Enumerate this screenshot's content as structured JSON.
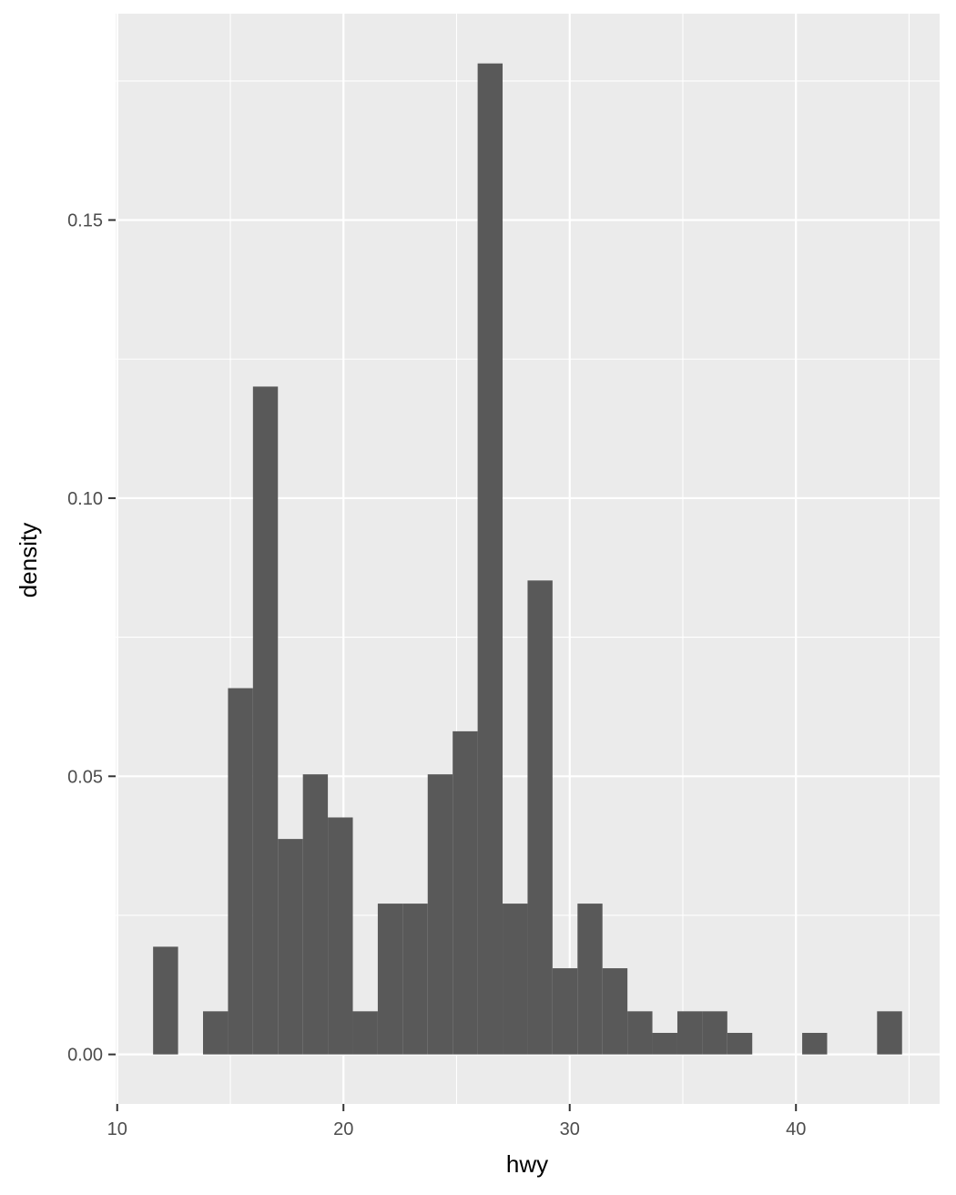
{
  "chart_data": {
    "type": "histogram",
    "x_label": "hwy",
    "y_label": "density",
    "bins": [
      11.586,
      12.69,
      13.793,
      14.897,
      16.0,
      17.103,
      18.207,
      19.31,
      20.414,
      21.517,
      22.621,
      23.724,
      24.828,
      25.931,
      27.034,
      28.138,
      29.241,
      30.345,
      31.448,
      32.552,
      33.655,
      34.759,
      35.862,
      36.966,
      38.069,
      39.172,
      40.276,
      41.379,
      42.483,
      43.586,
      44.69
    ],
    "values": [
      0.01936,
      0,
      0.00775,
      0.06584,
      0.12006,
      0.03873,
      0.05035,
      0.0426,
      0.00775,
      0.02711,
      0.02711,
      0.05035,
      0.05809,
      0.17815,
      0.02711,
      0.0852,
      0.01549,
      0.02711,
      0.01549,
      0.00775,
      0.00387,
      0.00775,
      0.00775,
      0.00387,
      0,
      0,
      0.00387,
      0,
      0,
      0.00775
    ],
    "color": "#595959",
    "xlim": [
      9.93,
      46.35
    ],
    "ylim": [
      -0.0089,
      0.1871
    ],
    "xticks": [
      10,
      20,
      30,
      40
    ],
    "yticks": [
      {
        "value": 0,
        "label": "0.00"
      },
      {
        "value": 0.05,
        "label": "0.05"
      },
      {
        "value": 0.1,
        "label": "0.10"
      },
      {
        "value": 0.15,
        "label": "0.15"
      }
    ],
    "grid": true
  }
}
